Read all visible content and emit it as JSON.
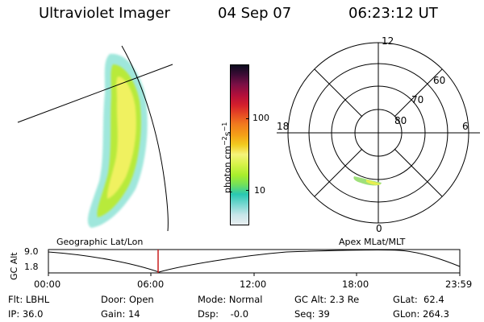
{
  "header": {
    "title": "Ultraviolet Imager",
    "date": "04 Sep 07",
    "time": "06:23:12 UT"
  },
  "colorbar": {
    "label_main": "photon cm",
    "label_exp1": "−2",
    "label_mid": "s",
    "label_exp2": "−1",
    "tick_100": "100",
    "tick_10": "10",
    "colors": [
      "#e8eef0",
      "#c9e6ea",
      "#73d6cf",
      "#29c7b3",
      "#72e05b",
      "#a8ee2c",
      "#d8f24a",
      "#f5f37a",
      "#f2cc1f",
      "#f4a117",
      "#f17a1e",
      "#e64b23",
      "#d41f2c",
      "#b40f3a",
      "#7a0f45",
      "#3d0b35",
      "#0b0b1e"
    ]
  },
  "polar": {
    "mlt_12": "12",
    "mlt_18": "18",
    "mlt_6": "6",
    "mlt_0": "0",
    "lat_60": "60",
    "lat_70": "70",
    "lat_80": "80"
  },
  "timeline": {
    "left_label": "Geographic Lat/Lon",
    "right_label": "Apex MLat/MLT",
    "y_axis_label": "GC Alt",
    "y_top": "9.0",
    "y_bottom": "1.8",
    "ticks": [
      "00:00",
      "06:00",
      "12:00",
      "18:00",
      "23:59"
    ]
  },
  "info": {
    "filter": "Flt: LBHL",
    "ip": "IP: 36.0",
    "door": "Door: Open",
    "gain": "Gain: 14",
    "mode": "Mode: Normal",
    "dsp": "Dsp:    -0.0",
    "gc_alt": "GC Alt: 2.3 Re",
    "seq": "Seq: 39",
    "glat": "GLat:  62.4",
    "glon": "GLon: 264.3"
  }
}
